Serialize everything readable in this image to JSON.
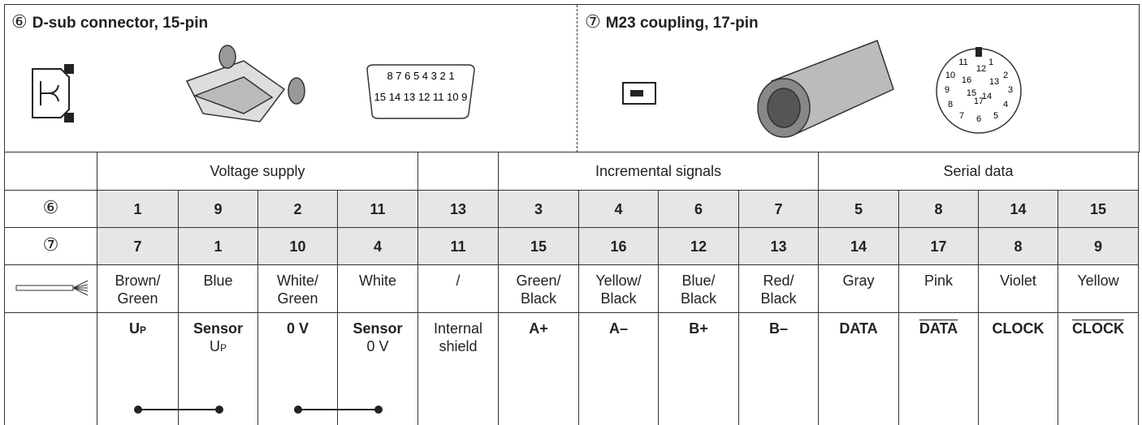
{
  "left": {
    "marker": "⑥",
    "title": "D-sub connector, 15-pin",
    "pins_top": "8 7 6 5 4 3 2 1",
    "pins_bottom": "15 14 13 12 11 10 9"
  },
  "right": {
    "marker": "⑦",
    "title": "M23 coupling, 17-pin",
    "pins": [
      "1",
      "2",
      "3",
      "4",
      "5",
      "6",
      "7",
      "8",
      "9",
      "10",
      "11",
      "12",
      "13",
      "14",
      "15",
      "16",
      "17"
    ]
  },
  "table": {
    "groups": [
      {
        "label": "Voltage supply",
        "span": 4
      },
      {
        "label": "",
        "span": 1
      },
      {
        "label": "Incremental signals",
        "span": 4
      },
      {
        "label": "Serial data",
        "span": 4
      }
    ],
    "row_markers": [
      "⑥",
      "⑦"
    ],
    "dsub": [
      "1",
      "9",
      "2",
      "11",
      "13",
      "3",
      "4",
      "6",
      "7",
      "5",
      "8",
      "14",
      "15"
    ],
    "m23": [
      "7",
      "1",
      "10",
      "4",
      "11",
      "15",
      "16",
      "12",
      "13",
      "14",
      "17",
      "8",
      "9"
    ],
    "colors": [
      "Brown/\nGreen",
      "Blue",
      "White/\nGreen",
      "White",
      "/",
      "Green/\nBlack",
      "Yellow/\nBlack",
      "Blue/\nBlack",
      "Red/\nBlack",
      "Gray",
      "Pink",
      "Violet",
      "Yellow"
    ],
    "signals": [
      {
        "text": "U",
        "sub": "P",
        "bold": true
      },
      {
        "text": "Sensor",
        "line2": "U",
        "line2_sub": "P",
        "bold": true
      },
      {
        "text": "0 V",
        "bold": true
      },
      {
        "text": "Sensor",
        "line2": "0 V",
        "bold": true
      },
      {
        "text": "Internal\nshield",
        "bold": false
      },
      {
        "text": "A+",
        "bold": true
      },
      {
        "text": "A–",
        "bold": true
      },
      {
        "text": "B+",
        "bold": true
      },
      {
        "text": "B–",
        "bold": true
      },
      {
        "text": "DATA",
        "bold": true
      },
      {
        "text": "DATA",
        "bold": true,
        "overline": true
      },
      {
        "text": "CLOCK",
        "bold": true
      },
      {
        "text": "CLOCK",
        "bold": true,
        "overline": true
      }
    ]
  }
}
